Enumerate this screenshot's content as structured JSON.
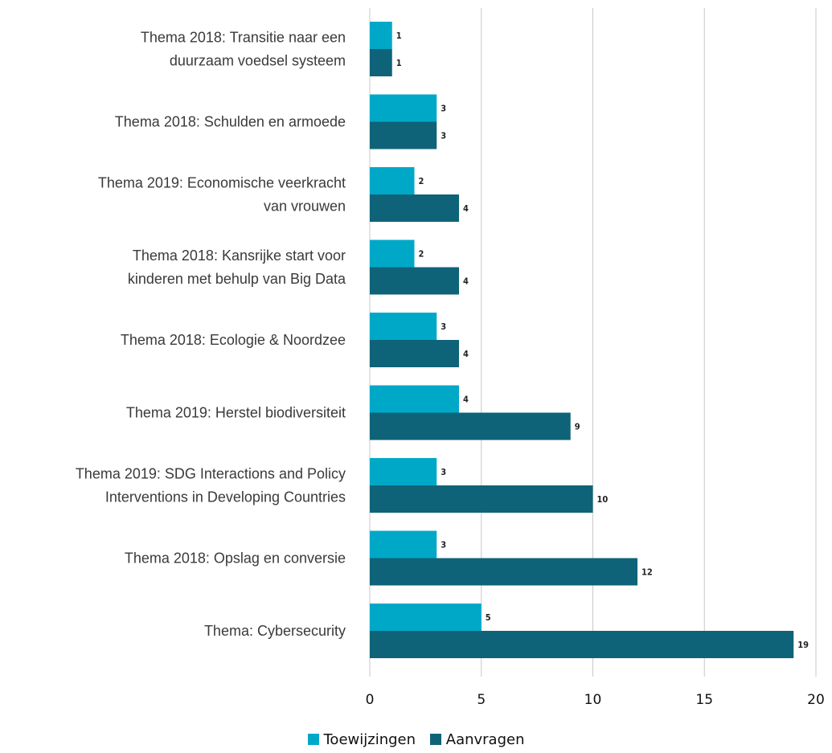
{
  "chart_data": {
    "type": "bar",
    "orientation": "horizontal",
    "categories": [
      [
        "Thema 2018: Transitie naar een",
        "duurzaam voedsel systeem"
      ],
      [
        "Thema 2018: Schulden en armoede"
      ],
      [
        "Thema 2019: Economische veerkracht",
        "van vrouwen"
      ],
      [
        "Thema 2018: Kansrijke start voor",
        "kinderen met behulp van Big Data"
      ],
      [
        "Thema 2018: Ecologie & Noordzee"
      ],
      [
        "Thema 2019: Herstel biodiversiteit"
      ],
      [
        "Thema 2019: SDG Interactions and Policy",
        "Interventions in Developing Countries"
      ],
      [
        "Thema 2018: Opslag en conversie"
      ],
      [
        "Thema: Cybersecurity"
      ]
    ],
    "series": [
      {
        "name": "Toewijzingen",
        "color": "#00a8c8",
        "values": [
          1,
          3,
          2,
          2,
          3,
          4,
          3,
          3,
          5
        ]
      },
      {
        "name": "Aanvragen",
        "color": "#0e6378",
        "values": [
          1,
          3,
          4,
          4,
          4,
          9,
          10,
          12,
          19
        ]
      }
    ],
    "xlim": [
      0,
      20
    ],
    "xticks": [
      0,
      5,
      10,
      15,
      20
    ],
    "grid": true,
    "legend_position": "bottom-center",
    "title": "",
    "xlabel": "",
    "ylabel": ""
  }
}
